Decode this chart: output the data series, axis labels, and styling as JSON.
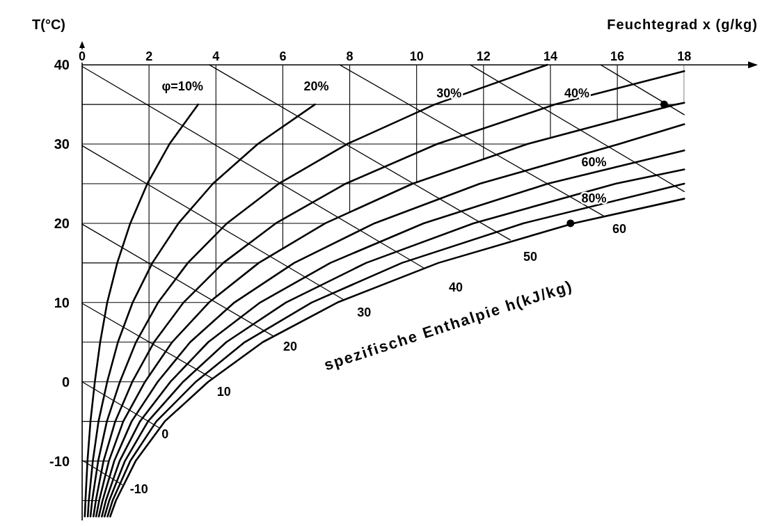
{
  "chart_data": {
    "type": "line",
    "xlabel": "Feuchtegrad x (g/kg)",
    "ylabel": "T(°C)",
    "xlim": [
      0,
      20.2
    ],
    "ylim": [
      -17.5,
      43
    ],
    "xticks": [
      0,
      2,
      4,
      6,
      8,
      10,
      12,
      14,
      16,
      18
    ],
    "yticks": [
      {
        "value": -15,
        "label": null
      },
      -10,
      {
        "value": -5,
        "label": null
      },
      0,
      {
        "value": 5,
        "label": null
      },
      10,
      {
        "value": 15,
        "label": null
      },
      20,
      {
        "value": 25,
        "label": null
      },
      30,
      {
        "value": 35,
        "label": null
      },
      40
    ],
    "grid": true,
    "series": [
      {
        "color": "#000000",
        "x": [
          0.08,
          0.1,
          0.16,
          0.25,
          0.38,
          0.54,
          0.75,
          1.05,
          1.44,
          1.95,
          2.61,
          3.47
        ],
        "values": [
          -17,
          -15,
          -10,
          -5,
          0,
          5,
          10,
          15,
          20,
          25,
          30,
          35
        ]
      },
      {
        "color": "#000000",
        "x": [
          0.17,
          0.2,
          0.32,
          0.49,
          0.75,
          1.07,
          1.51,
          2.1,
          2.88,
          3.91,
          5.25,
          6.96
        ],
        "values": [
          -17,
          -15,
          -10,
          -5,
          0,
          5,
          10,
          15,
          20,
          25,
          30,
          35
        ]
      },
      {
        "color": "#000000",
        "x": [
          0.25,
          0.3,
          0.48,
          0.74,
          1.13,
          1.61,
          2.27,
          3.16,
          4.33,
          5.88,
          7.92,
          10.54,
          13.9
        ],
        "values": [
          -17,
          -15,
          -10,
          -5,
          0,
          5,
          10,
          15,
          20,
          25,
          30,
          35,
          40
        ]
      },
      {
        "color": "#000000",
        "x": [
          0.34,
          0.41,
          0.64,
          0.99,
          1.5,
          2.15,
          3.03,
          4.22,
          5.79,
          7.88,
          10.61,
          14.14,
          18
        ],
        "values": [
          -17,
          -15,
          -10,
          -5,
          0,
          5,
          10,
          15,
          20,
          25,
          30,
          35,
          39.2
        ]
      },
      {
        "color": "#000000",
        "x": [
          0.42,
          0.51,
          0.8,
          1.23,
          1.88,
          2.69,
          3.79,
          5.28,
          7.27,
          9.88,
          13.31,
          17.76,
          18
        ],
        "values": [
          -17,
          -15,
          -10,
          -5,
          0,
          5,
          10,
          15,
          20,
          25,
          30,
          35,
          35.2
        ]
      },
      {
        "color": "#000000",
        "x": [
          0.5,
          0.61,
          0.96,
          1.48,
          2.26,
          3.23,
          4.55,
          6.34,
          8.74,
          11.89,
          16.05,
          18
        ],
        "values": [
          -17,
          -15,
          -10,
          -5,
          0,
          5,
          10,
          15,
          20,
          25,
          30,
          32.5
        ]
      },
      {
        "color": "#000000",
        "x": [
          0.59,
          0.71,
          1.12,
          1.73,
          2.64,
          3.77,
          5.32,
          7.42,
          10.21,
          13.92,
          18
        ],
        "values": [
          -17,
          -15,
          -10,
          -5,
          0,
          5,
          10,
          15,
          20,
          25,
          29.2
        ]
      },
      {
        "color": "#000000",
        "x": [
          0.67,
          0.81,
          1.28,
          1.97,
          3.02,
          4.31,
          6.09,
          8.49,
          11.7,
          15.95,
          18
        ],
        "values": [
          -17,
          -15,
          -10,
          -5,
          0,
          5,
          10,
          15,
          20,
          25,
          26.8
        ]
      },
      {
        "color": "#000000",
        "x": [
          0.76,
          0.91,
          1.44,
          2.22,
          3.4,
          4.86,
          6.86,
          9.56,
          13.19,
          18
        ],
        "values": [
          -17,
          -15,
          -10,
          -5,
          0,
          5,
          10,
          15,
          20,
          25
        ]
      },
      {
        "color": "#000000",
        "x": [
          0.84,
          1.01,
          1.6,
          2.47,
          3.77,
          5.4,
          7.63,
          10.65,
          14.69,
          18
        ],
        "values": [
          -17,
          -15,
          -10,
          -5,
          0,
          5,
          10,
          15,
          20,
          23.1
        ]
      },
      {
        "color": "#000000",
        "x": [
          0,
          1.2
        ],
        "values": [
          -9.9,
          -13
        ]
      },
      {
        "color": "#000000",
        "x": [
          0,
          2.3
        ],
        "values": [
          0,
          -5.8
        ]
      },
      {
        "color": "#000000",
        "x": [
          0,
          3.9
        ],
        "values": [
          9.9,
          0.4
        ]
      },
      {
        "color": "#000000",
        "x": [
          0,
          5.7
        ],
        "values": [
          19.9,
          5.8
        ]
      },
      {
        "color": "#000000",
        "x": [
          0,
          7.8
        ],
        "values": [
          29.8,
          10.4
        ]
      },
      {
        "color": "#000000",
        "x": [
          0,
          10.2
        ],
        "values": [
          39.8,
          14.4
        ]
      },
      {
        "color": "#000000",
        "x": [
          3.8,
          12.8
        ],
        "values": [
          40,
          17.9
        ]
      },
      {
        "color": "#000000",
        "x": [
          7.7,
          15.6
        ],
        "values": [
          40,
          20.9
        ]
      },
      {
        "color": "#000000",
        "x": [
          11.6,
          18
        ],
        "values": [
          40,
          24
        ]
      },
      {
        "color": "#000000",
        "x": [
          15.5,
          18
        ],
        "values": [
          40,
          33.7
        ]
      },
      {
        "type": "scatter",
        "color": "#000000",
        "marker": "circle",
        "x": [
          17.4,
          14.6
        ],
        "values": [
          35,
          20
        ]
      }
    ],
    "annotations": [
      "φ=10%",
      "20%",
      "30%",
      "40%",
      "60%",
      "80%",
      "60",
      "50",
      "40",
      "30",
      "20",
      "10",
      "0",
      "-10",
      "spezifische Enthalpie h(kJ/kg)"
    ]
  }
}
